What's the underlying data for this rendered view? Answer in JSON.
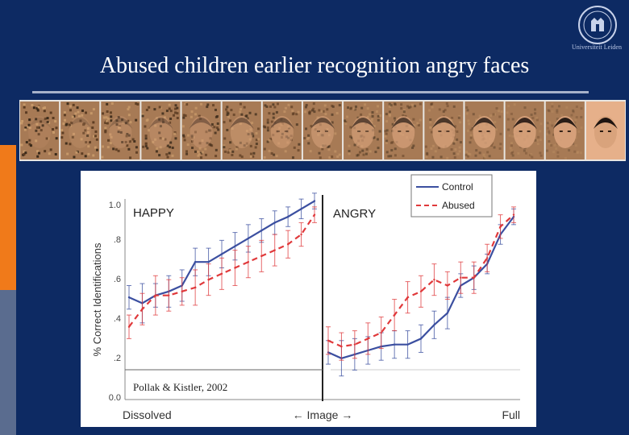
{
  "slide": {
    "title": "Abused children earlier recognition angry faces",
    "logo_icon": "university-seal-icon",
    "logo_caption": "Universiteit Leiden",
    "colors": {
      "background": "#0d2a63",
      "accent_orange": "#f07a1a",
      "accent_slate": "#5a6c8f",
      "control": "#3b4fa0",
      "abused": "#e0393b"
    }
  },
  "face_strip": {
    "count": 15
  },
  "figure": {
    "citation": "Pollak & Kistler, 2002"
  },
  "chart_data": {
    "type": "line",
    "ylabel": "% Correct Identifications",
    "ylim": [
      0,
      1.0
    ],
    "yticks": [
      "0.0",
      ".2",
      ".4",
      ".6",
      ".8",
      "1.0"
    ],
    "x_axis": {
      "left": "Dissolved",
      "center": "← Image →",
      "right": "Full"
    },
    "legend": {
      "placement": "top-right",
      "entries": [
        "Control",
        "Abused"
      ]
    },
    "panels": [
      {
        "name": "HAPPY",
        "x": [
          1,
          2,
          3,
          4,
          5,
          6,
          7,
          8,
          9,
          10,
          11,
          12,
          13,
          14,
          15
        ],
        "series": [
          {
            "name": "Control",
            "values": [
              0.52,
              0.49,
              0.53,
              0.55,
              0.58,
              0.7,
              0.7,
              0.74,
              0.78,
              0.82,
              0.86,
              0.9,
              0.93,
              0.97,
              1.01
            ],
            "errors": [
              0.06,
              0.1,
              0.06,
              0.08,
              0.08,
              0.07,
              0.07,
              0.07,
              0.07,
              0.07,
              0.06,
              0.06,
              0.05,
              0.05,
              0.04
            ]
          },
          {
            "name": "Abused",
            "values": [
              0.37,
              0.46,
              0.53,
              0.53,
              0.55,
              0.57,
              0.61,
              0.64,
              0.67,
              0.7,
              0.73,
              0.76,
              0.79,
              0.84,
              0.94
            ],
            "errors": [
              0.06,
              0.08,
              0.1,
              0.08,
              0.07,
              0.09,
              0.08,
              0.08,
              0.09,
              0.08,
              0.08,
              0.08,
              0.07,
              0.06,
              0.04
            ]
          }
        ]
      },
      {
        "name": "ANGRY",
        "x": [
          1,
          2,
          3,
          4,
          5,
          6,
          7,
          8,
          9,
          10,
          11,
          12,
          13,
          14,
          15
        ],
        "series": [
          {
            "name": "Control",
            "values": [
              0.24,
              0.21,
              0.23,
              0.25,
              0.27,
              0.28,
              0.28,
              0.31,
              0.38,
              0.44,
              0.58,
              0.62,
              0.69,
              0.84,
              0.93
            ],
            "errors": [
              0.06,
              0.09,
              0.08,
              0.07,
              0.07,
              0.07,
              0.07,
              0.07,
              0.07,
              0.08,
              0.06,
              0.06,
              0.05,
              0.05,
              0.04
            ]
          },
          {
            "name": "Abused",
            "values": [
              0.3,
              0.27,
              0.28,
              0.31,
              0.34,
              0.43,
              0.52,
              0.55,
              0.61,
              0.58,
              0.62,
              0.62,
              0.72,
              0.88,
              0.94
            ],
            "errors": [
              0.07,
              0.07,
              0.07,
              0.08,
              0.08,
              0.08,
              0.08,
              0.08,
              0.08,
              0.07,
              0.08,
              0.08,
              0.07,
              0.06,
              0.04
            ]
          }
        ]
      }
    ]
  }
}
